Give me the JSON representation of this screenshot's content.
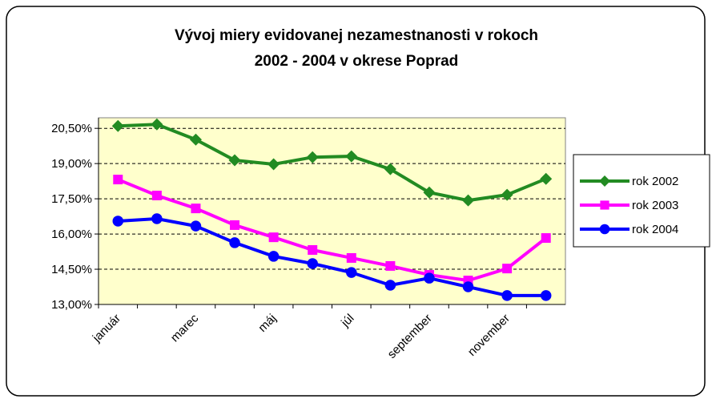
{
  "chart_data": {
    "type": "line",
    "title": [
      "Vývoj miery evidovanej nezamestnanosti v rokoch",
      "2002 - 2004 v okrese Poprad"
    ],
    "categories": [
      "január",
      null,
      "marec",
      null,
      "máj",
      null,
      "júl",
      null,
      "september",
      null,
      "november",
      null
    ],
    "series": [
      {
        "name": "rok 2002",
        "color": "#228b22",
        "marker": "diamond",
        "values": [
          20.6,
          20.67,
          20.02,
          19.14,
          18.97,
          19.27,
          19.31,
          18.76,
          17.77,
          17.43,
          17.67,
          18.35
        ]
      },
      {
        "name": "rok 2003",
        "color": "#ff00ff",
        "marker": "square",
        "values": [
          18.32,
          17.64,
          17.09,
          16.38,
          15.86,
          15.32,
          14.98,
          14.64,
          14.26,
          14.02,
          14.53,
          15.83
        ]
      },
      {
        "name": "rok 2004",
        "color": "#0000ff",
        "marker": "circle",
        "values": [
          16.55,
          16.65,
          16.34,
          15.63,
          15.05,
          14.74,
          14.36,
          13.82,
          14.12,
          13.75,
          13.38,
          13.38
        ]
      }
    ],
    "ylim": [
      13,
      20.95
    ],
    "yticks": [
      {
        "value": 13,
        "label": "13,00%"
      },
      {
        "value": 14.5,
        "label": "14,50%"
      },
      {
        "value": 16,
        "label": "16,00%"
      },
      {
        "value": 17.5,
        "label": "17,50%"
      },
      {
        "value": 19,
        "label": "19,00%"
      },
      {
        "value": 20.5,
        "label": "20,50%"
      }
    ],
    "grid": true,
    "legend": "right",
    "plot_background": "#ffffcc"
  }
}
